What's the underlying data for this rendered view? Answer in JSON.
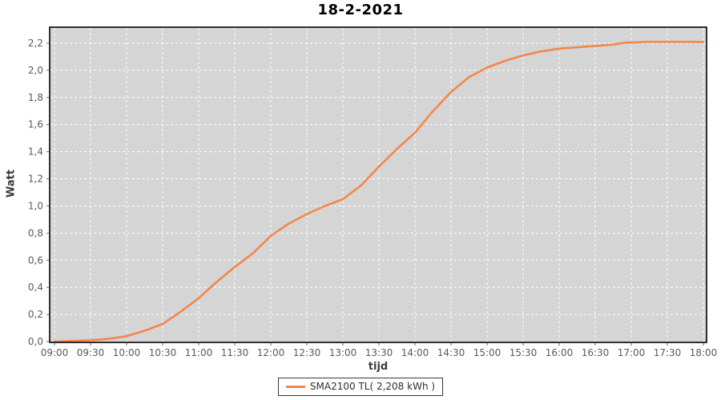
{
  "chart": {
    "title": "18-2-2021",
    "xlabel": "tijd",
    "ylabel": "Watt"
  },
  "legend": {
    "label": "SMA2100 TL( 2,208 kWh )"
  },
  "colors": {
    "plot_bg": "#d5d5d5",
    "grid": "#ffffff",
    "plot_border": "#000000",
    "tick": "#6b6b6b",
    "tick_label": "#5a5a5a",
    "series": "#f4874b"
  },
  "chart_data": {
    "type": "line",
    "title": "18-2-2021",
    "xlabel": "tijd",
    "ylabel": "Watt",
    "x_axis_hours_range": [
      9,
      18
    ],
    "ylim": [
      0,
      2.2
    ],
    "grid": "white dashed gridlines on gray plot background",
    "legend_position": "bottom-center",
    "x_ticks": [
      "09:00",
      "09:30",
      "10:00",
      "10:30",
      "11:00",
      "11:30",
      "12:00",
      "12:30",
      "13:00",
      "13:30",
      "14:00",
      "14:30",
      "15:00",
      "15:30",
      "16:00",
      "16:30",
      "17:00",
      "17:30",
      "18:00"
    ],
    "y_ticks": [
      [
        0.0,
        "0,0"
      ],
      [
        0.2,
        "0,2"
      ],
      [
        0.4,
        "0,4"
      ],
      [
        0.6,
        "0,6"
      ],
      [
        0.8,
        "0,8"
      ],
      [
        1.0,
        "1,0"
      ],
      [
        1.2,
        "1,2"
      ],
      [
        1.4,
        "1,4"
      ],
      [
        1.6,
        "1,6"
      ],
      [
        1.8,
        "1,8"
      ],
      [
        2.0,
        "2,0"
      ],
      [
        2.2,
        "2,2"
      ]
    ],
    "series": [
      {
        "name": "SMA2100 TL( 2,208 kWh )",
        "color": "#f4874b",
        "total_kwh_label": "2,208 kWh",
        "points": [
          [
            "09:00",
            0.0
          ],
          [
            "09:15",
            0.005
          ],
          [
            "09:30",
            0.01
          ],
          [
            "09:45",
            0.02
          ],
          [
            "10:00",
            0.04
          ],
          [
            "10:15",
            0.08
          ],
          [
            "10:30",
            0.13
          ],
          [
            "10:45",
            0.22
          ],
          [
            "11:00",
            0.32
          ],
          [
            "11:15",
            0.44
          ],
          [
            "11:30",
            0.55
          ],
          [
            "11:45",
            0.65
          ],
          [
            "12:00",
            0.78
          ],
          [
            "12:15",
            0.87
          ],
          [
            "12:30",
            0.94
          ],
          [
            "12:45",
            1.0
          ],
          [
            "13:00",
            1.05
          ],
          [
            "13:15",
            1.15
          ],
          [
            "13:30",
            1.29
          ],
          [
            "13:45",
            1.42
          ],
          [
            "14:00",
            1.54
          ],
          [
            "14:15",
            1.7
          ],
          [
            "14:30",
            1.84
          ],
          [
            "14:45",
            1.95
          ],
          [
            "15:00",
            2.02
          ],
          [
            "15:15",
            2.07
          ],
          [
            "15:30",
            2.11
          ],
          [
            "15:45",
            2.14
          ],
          [
            "16:00",
            2.16
          ],
          [
            "16:15",
            2.17
          ],
          [
            "16:30",
            2.18
          ],
          [
            "16:45",
            2.19
          ],
          [
            "16:55",
            2.205
          ],
          [
            "17:00",
            2.205
          ],
          [
            "17:15",
            2.21
          ],
          [
            "17:30",
            2.21
          ],
          [
            "17:45",
            2.21
          ],
          [
            "18:00",
            2.208
          ]
        ]
      }
    ]
  }
}
